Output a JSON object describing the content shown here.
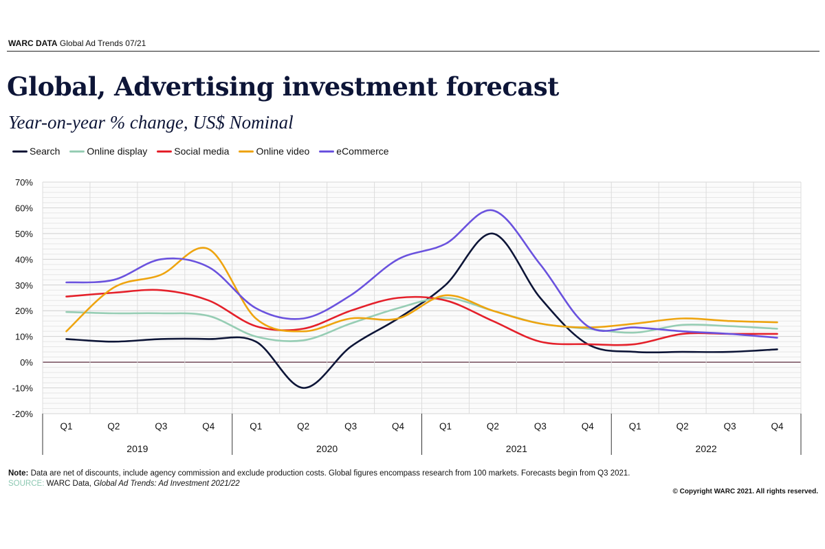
{
  "header": {
    "brand": "WARC DATA",
    "report": "Global Ad Trends 07/21"
  },
  "title": "Global, Advertising investment forecast",
  "subtitle": "Year-on-year % change, US$ Nominal",
  "footer": {
    "note_label": "Note:",
    "note_text": "Data are net of discounts, include agency commission and exclude production costs. Global figures encompass research from 100 markets. Forecasts begin from Q3 2021.",
    "source_label": "SOURCE:",
    "source_text": "WARC Data,",
    "source_title": "Global Ad Trends: Ad Investment 2021/22",
    "copyright": "© Copyright WARC 2021. All rights reserved."
  },
  "chart_data": {
    "type": "line",
    "x": [
      "Q1",
      "Q2",
      "Q3",
      "Q4",
      "Q1",
      "Q2",
      "Q3",
      "Q4",
      "Q1",
      "Q2",
      "Q3",
      "Q4",
      "Q1",
      "Q2",
      "Q3",
      "Q4"
    ],
    "years": [
      "2019",
      "2020",
      "2021",
      "2022"
    ],
    "ylim": [
      -20,
      70
    ],
    "yticks": [
      70,
      60,
      50,
      40,
      30,
      20,
      10,
      0,
      -10,
      -20
    ],
    "ytick_labels": [
      "70%",
      "60%",
      "50%",
      "40%",
      "30%",
      "20%",
      "10%",
      "0%",
      "-10%",
      "-20%"
    ],
    "grid": true,
    "legend_position": "top-left",
    "series": [
      {
        "name": "Search",
        "color": "#0d1537",
        "values": [
          9,
          8,
          9,
          9,
          8,
          -10,
          6,
          17,
          30,
          50,
          25,
          7,
          4,
          4,
          4,
          5
        ]
      },
      {
        "name": "Online display",
        "color": "#96cdb4",
        "values": [
          19.5,
          19,
          19,
          18,
          10,
          8.5,
          15,
          21,
          25,
          20,
          15,
          13,
          11.5,
          14.5,
          14,
          13
        ]
      },
      {
        "name": "Social media",
        "color": "#e4202a",
        "values": [
          25.5,
          27,
          28,
          24,
          14,
          13,
          20,
          25,
          24,
          16,
          8,
          7,
          7,
          11,
          11,
          11
        ]
      },
      {
        "name": "Online video",
        "color": "#eea40f",
        "values": [
          12,
          29,
          34,
          44,
          17,
          12,
          17,
          17,
          26,
          20,
          15,
          13.5,
          15,
          17,
          16,
          15.5
        ]
      },
      {
        "name": "eCommerce",
        "color": "#6a52de",
        "values": [
          31,
          32,
          40,
          37,
          21,
          17,
          26,
          40,
          46,
          59,
          38,
          14,
          13.5,
          12,
          11,
          9.5
        ]
      }
    ]
  }
}
